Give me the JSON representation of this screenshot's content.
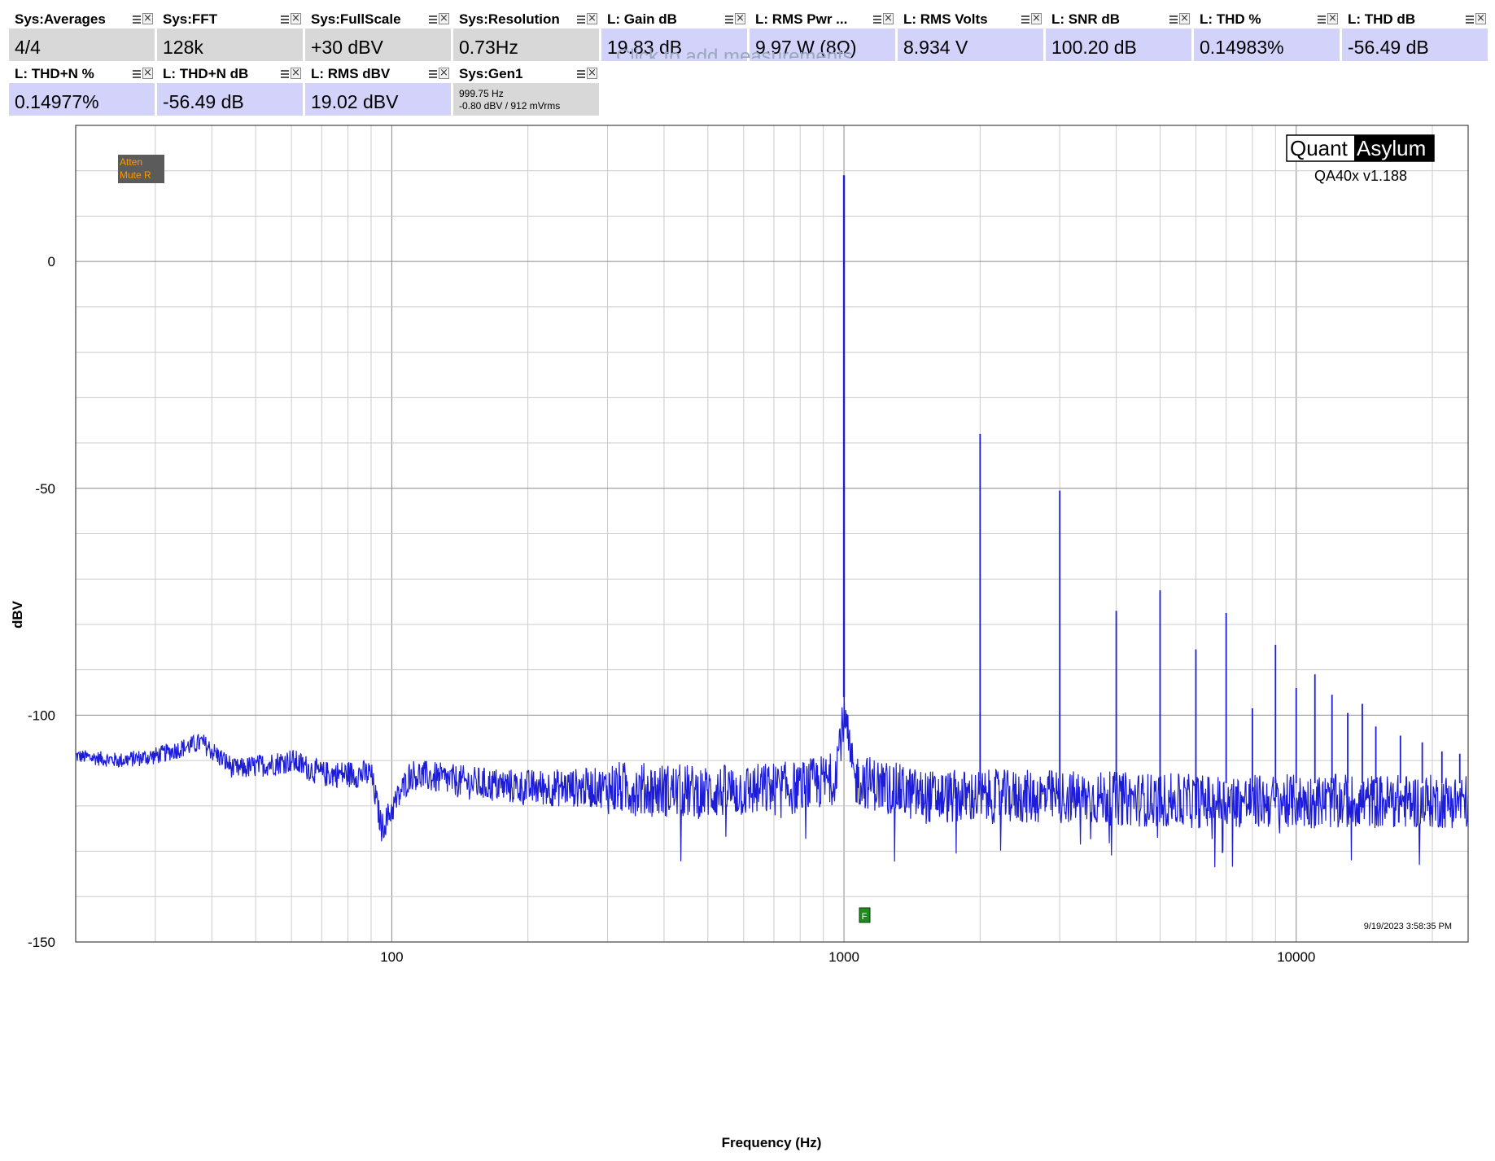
{
  "measurements": {
    "row1": [
      {
        "title": "Sys:Averages",
        "value": "4/4",
        "kind": "sys"
      },
      {
        "title": "Sys:FFT",
        "value": "128k",
        "kind": "sys"
      },
      {
        "title": "Sys:FullScale",
        "value": "+30 dBV",
        "kind": "sys"
      },
      {
        "title": "Sys:Resolution",
        "value": "0.73Hz",
        "kind": "sys"
      },
      {
        "title": "L: Gain dB",
        "value": "19.83 dB",
        "kind": "meas"
      },
      {
        "title": "L: RMS Pwr ...",
        "value": "9.97 W (8Ω)",
        "kind": "meas"
      },
      {
        "title": "L: RMS Volts",
        "value": "8.934 V",
        "kind": "meas"
      },
      {
        "title": "L: SNR dB",
        "value": "100.20 dB",
        "kind": "meas"
      },
      {
        "title": "L: THD %",
        "value": "0.14983%",
        "kind": "meas"
      },
      {
        "title": "L: THD dB",
        "value": "-56.49 dB",
        "kind": "meas"
      }
    ],
    "row2": [
      {
        "title": "L: THD+N %",
        "value": "0.14977%",
        "kind": "meas"
      },
      {
        "title": "L: THD+N dB",
        "value": "-56.49 dB",
        "kind": "meas"
      },
      {
        "title": "L: RMS dBV",
        "value": "19.02 dBV",
        "kind": "meas"
      }
    ],
    "gen": {
      "title": "Sys:Gen1",
      "line1": "999.75 Hz",
      "line2": "-0.80 dBV  / 912 mVrms"
    },
    "add_text": "Click to add measurements"
  },
  "status_box": {
    "line1": "Atten",
    "line2": "Mute R"
  },
  "brand": {
    "left": "Quant",
    "right": "Asylum",
    "version": "QA40x v1.188"
  },
  "timestamp": "9/19/2023 3:58:35 PM",
  "marker_label": "F",
  "colors": {
    "trace": "#1c1cd9",
    "sys_tile": "#d8d8d8",
    "meas_tile": "#d2d2fa",
    "grid": "#c8c8c8",
    "status_bg": "#5b5b5b",
    "status_text": "#ff9900",
    "marker": "#1e8c1e"
  },
  "chart_data": {
    "type": "line",
    "xlabel": "Frequency (Hz)",
    "ylabel": "dBV",
    "x_scale": "log",
    "xlim": [
      20,
      24000
    ],
    "ylim": [
      -150,
      30
    ],
    "x_ticks": [
      100,
      1000,
      10000
    ],
    "x_tick_labels": [
      "100",
      "1000",
      "10000"
    ],
    "y_ticks": [
      0,
      -50,
      -100,
      -150
    ],
    "y_tick_labels": [
      "0",
      "-50",
      "-100",
      "-150"
    ],
    "grid": true,
    "series": [
      {
        "color": "#1c1cd9",
        "noise_floor": [
          [
            20,
            -109
          ],
          [
            25,
            -110
          ],
          [
            30,
            -109
          ],
          [
            38,
            -106
          ],
          [
            45,
            -112
          ],
          [
            60,
            -110
          ],
          [
            70,
            -113
          ],
          [
            90,
            -113
          ],
          [
            95,
            -125
          ],
          [
            110,
            -113
          ],
          [
            150,
            -115
          ],
          [
            200,
            -116
          ],
          [
            300,
            -116
          ],
          [
            500,
            -117
          ],
          [
            800,
            -116
          ],
          [
            950,
            -114
          ],
          [
            1000,
            -100
          ],
          [
            1050,
            -114
          ],
          [
            1500,
            -118
          ],
          [
            3000,
            -118
          ],
          [
            6000,
            -119
          ],
          [
            10000,
            -119
          ],
          [
            24000,
            -119
          ]
        ],
        "peaks": [
          {
            "x": 1000,
            "y": 19.0
          },
          {
            "x": 2000,
            "y": -38.0
          },
          {
            "x": 3000,
            "y": -50.5
          },
          {
            "x": 4000,
            "y": -77.0
          },
          {
            "x": 5000,
            "y": -72.5
          },
          {
            "x": 6000,
            "y": -85.5
          },
          {
            "x": 7000,
            "y": -77.5
          },
          {
            "x": 8000,
            "y": -98.5
          },
          {
            "x": 9000,
            "y": -84.5
          },
          {
            "x": 10000,
            "y": -94.0
          },
          {
            "x": 11000,
            "y": -91.0
          },
          {
            "x": 12000,
            "y": -95.5
          },
          {
            "x": 13000,
            "y": -99.5
          },
          {
            "x": 14000,
            "y": -97.5
          },
          {
            "x": 15000,
            "y": -102.5
          },
          {
            "x": 17000,
            "y": -104.5
          },
          {
            "x": 19000,
            "y": -106.0
          },
          {
            "x": 21000,
            "y": -108.0
          },
          {
            "x": 23000,
            "y": -108.5
          }
        ]
      }
    ]
  }
}
